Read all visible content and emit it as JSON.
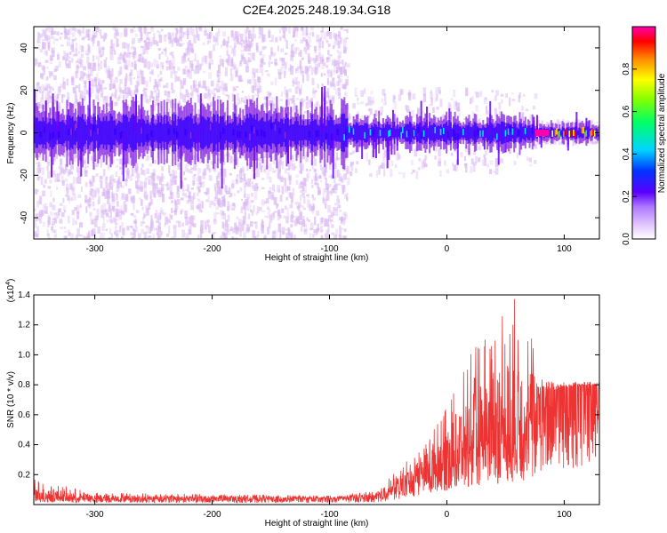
{
  "title": "C2E4.2025.248.19.34.G18",
  "chart_data": [
    {
      "type": "heatmap",
      "xlabel": "Height of straight line (km)",
      "ylabel": "Frequency (Hz)",
      "xlim": [
        -352,
        130
      ],
      "ylim": [
        -50,
        50
      ],
      "xticks": [
        -300,
        -200,
        -100,
        0,
        100
      ],
      "xtick_labels": [
        "-300",
        "-200",
        "-100",
        "0",
        "100"
      ],
      "yticks": [
        -40,
        -20,
        0,
        20,
        40
      ],
      "ytick_labels": [
        "-40",
        "-20",
        "0",
        "20",
        "40"
      ],
      "colorbar": {
        "label": "Normalized spectral amplitude",
        "range": [
          0,
          1
        ],
        "ticks": [
          0.0,
          0.2,
          0.4,
          0.6,
          0.8
        ],
        "tick_labels": [
          "0.0",
          "0.2",
          "0.4",
          "0.6",
          "0.8"
        ],
        "colors": [
          "#ffffff",
          "#d8b4f2",
          "#8a2be2",
          "#3300ff",
          "#00e5ff",
          "#00ff44",
          "#ffff00",
          "#ff8800",
          "#ff0000",
          "#ff00aa"
        ]
      },
      "regions": [
        {
          "x_range": [
            -352,
            -85
          ],
          "core_halfwidth_hz": 12,
          "scatter_halfwidth_hz": 50,
          "peak_level": 0.4
        },
        {
          "x_range": [
            -85,
            75
          ],
          "core_halfwidth_hz": 7,
          "scatter_halfwidth_hz": 20,
          "peak_level": 0.5
        },
        {
          "x_range": [
            75,
            130
          ],
          "core_halfwidth_hz": 4,
          "scatter_halfwidth_hz": 5,
          "peak_level": 0.95
        }
      ],
      "grid": false
    },
    {
      "type": "line",
      "xlabel": "Height of straight line (km)",
      "ylabel": "SNR (10 * v/v)",
      "y_multiplier_label": "(x10",
      "y_multiplier_exp": "4",
      "y_multiplier_close": ")",
      "xlim": [
        -352,
        130
      ],
      "ylim": [
        0,
        1.4
      ],
      "xticks": [
        -300,
        -200,
        -100,
        0,
        100
      ],
      "xtick_labels": [
        "-300",
        "-200",
        "-100",
        "0",
        "100"
      ],
      "yticks": [
        0.2,
        0.4,
        0.6,
        0.8,
        1.0,
        1.2,
        1.4
      ],
      "ytick_labels": [
        "0.2",
        "0.4",
        "0.6",
        "0.8",
        "1.0",
        "1.2",
        "1.4"
      ],
      "series_color": "#ee3333",
      "envelope": [
        {
          "x": -352,
          "mean": 0.05,
          "max": 0.17
        },
        {
          "x": -300,
          "mean": 0.04,
          "max": 0.08
        },
        {
          "x": -200,
          "mean": 0.04,
          "max": 0.07
        },
        {
          "x": -100,
          "mean": 0.04,
          "max": 0.06
        },
        {
          "x": -60,
          "mean": 0.05,
          "max": 0.09
        },
        {
          "x": -40,
          "mean": 0.12,
          "max": 0.25
        },
        {
          "x": -20,
          "mean": 0.2,
          "max": 0.4
        },
        {
          "x": 0,
          "mean": 0.3,
          "max": 0.65
        },
        {
          "x": 20,
          "mean": 0.4,
          "max": 1.0
        },
        {
          "x": 40,
          "mean": 0.45,
          "max": 1.25
        },
        {
          "x": 60,
          "mean": 0.5,
          "max": 1.4
        },
        {
          "x": 75,
          "mean": 0.6,
          "max": 1.1
        },
        {
          "x": 78,
          "mean": 0.72,
          "max": 0.85
        },
        {
          "x": 100,
          "mean": 0.78,
          "max": 0.82
        },
        {
          "x": 130,
          "mean": 0.8,
          "max": 0.82
        }
      ],
      "grid": false
    }
  ]
}
